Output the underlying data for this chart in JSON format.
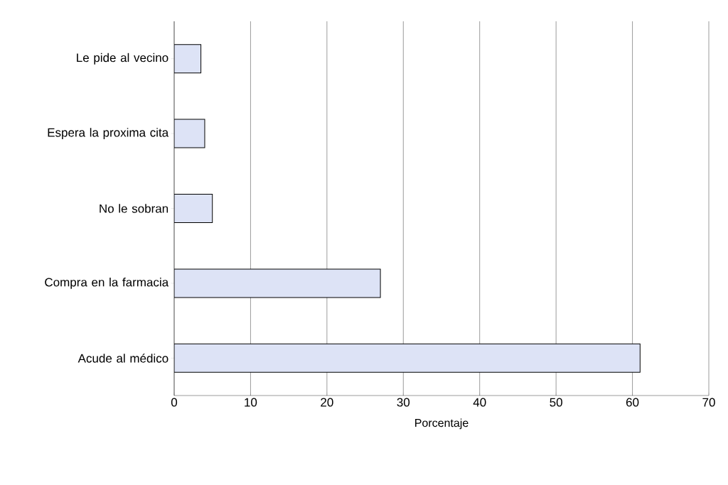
{
  "chart_data": {
    "type": "bar",
    "orientation": "horizontal",
    "xlabel": "Porcentaje",
    "categories": [
      "Le pide al vecino",
      "Espera la proxima cita",
      "No le sobran",
      "Compra en la farmacia",
      "Acude al médico"
    ],
    "values": [
      3.5,
      4,
      5,
      27,
      61
    ],
    "color": "#dde3f6",
    "xlim": [
      0,
      70
    ],
    "xticks": [
      0,
      10,
      20,
      30,
      40,
      50,
      60,
      70
    ],
    "grid": "x"
  }
}
